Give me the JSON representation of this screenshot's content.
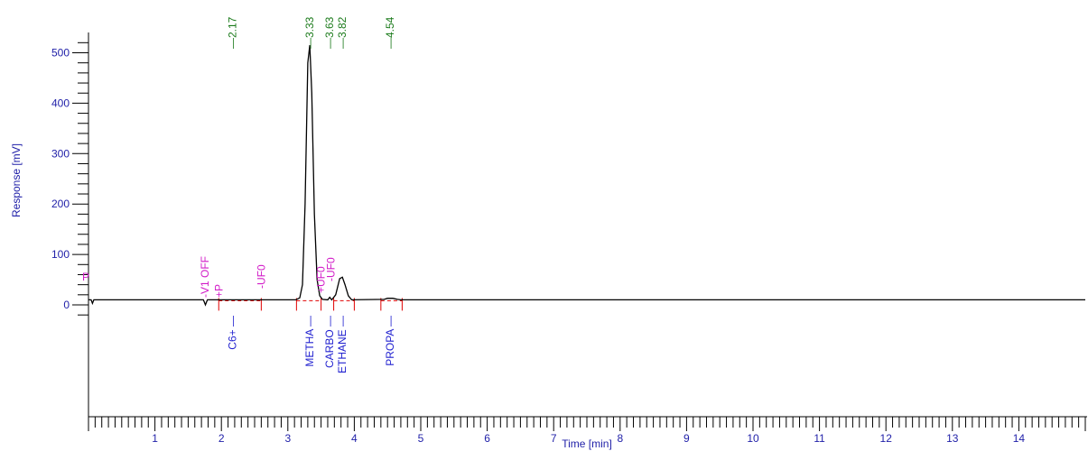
{
  "chart_data": {
    "type": "line",
    "xlabel": "Time [min]",
    "ylabel": "Response [mV]",
    "xlim": [
      0,
      15
    ],
    "ylim": [
      -200,
      540
    ],
    "x_ticks": [
      1,
      2,
      3,
      4,
      5,
      6,
      7,
      8,
      9,
      10,
      11,
      12,
      13,
      14
    ],
    "y_ticks": [
      0,
      100,
      200,
      300,
      400,
      500
    ],
    "grid": false,
    "series": [
      {
        "color": "#000000",
        "baseline": 10,
        "points": [
          [
            0.0,
            10
          ],
          [
            0.04,
            10
          ],
          [
            0.06,
            3
          ],
          [
            0.08,
            10
          ],
          [
            1.73,
            10
          ],
          [
            1.76,
            0
          ],
          [
            1.79,
            10
          ],
          [
            3.12,
            10
          ],
          [
            3.18,
            14
          ],
          [
            3.22,
            40
          ],
          [
            3.26,
            200
          ],
          [
            3.3,
            480
          ],
          [
            3.33,
            515
          ],
          [
            3.36,
            420
          ],
          [
            3.4,
            180
          ],
          [
            3.44,
            50
          ],
          [
            3.48,
            18
          ],
          [
            3.52,
            11
          ],
          [
            3.6,
            10
          ],
          [
            3.63,
            15
          ],
          [
            3.66,
            10
          ],
          [
            3.72,
            20
          ],
          [
            3.78,
            52
          ],
          [
            3.82,
            55
          ],
          [
            3.86,
            40
          ],
          [
            3.91,
            18
          ],
          [
            3.96,
            10
          ],
          [
            4.45,
            11
          ],
          [
            4.5,
            13
          ],
          [
            4.58,
            13
          ],
          [
            4.65,
            11
          ],
          [
            4.7,
            10
          ],
          [
            15.0,
            10
          ]
        ]
      }
    ],
    "peak_retention_times": [
      "2.17",
      "3.33",
      "3.63",
      "3.82",
      "4.54"
    ],
    "events": [
      {
        "label": "-V1 OFF",
        "time": 1.75
      },
      {
        "label": "+P",
        "time": 1.96
      },
      {
        "label": "-UF0",
        "time": 2.6
      },
      {
        "label": "+UF0",
        "time": 3.5
      },
      {
        "label": "-UF0",
        "time": 3.65
      }
    ],
    "components": [
      {
        "label": "C6+",
        "time": 2.17
      },
      {
        "label": "METHA",
        "time": 3.33
      },
      {
        "label": "CARBO",
        "time": 3.63
      },
      {
        "label": "ETHANE",
        "time": 3.82
      },
      {
        "label": "PROPA",
        "time": 4.54
      }
    ],
    "integration_marks": [
      1.96,
      2.6,
      3.13,
      3.5,
      3.69,
      4.0,
      4.4,
      4.72
    ],
    "colors": {
      "axis": "#000000",
      "tick_text": "#1f1fa8",
      "peak_label": "#1a7a1a",
      "event_label": "#d21cc8",
      "component_label": "#1f1fcf",
      "integration_mark": "#e00000",
      "baseline_dash": "#e00000"
    },
    "start_marker": "P"
  }
}
